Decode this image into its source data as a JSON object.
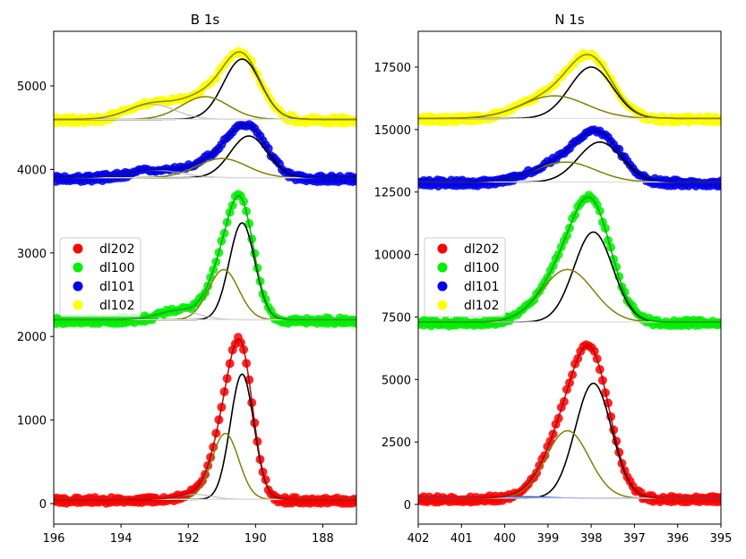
{
  "chart_data": [
    {
      "type": "scatter",
      "title": "B 1s",
      "xlabel": "",
      "ylabel": "",
      "xlim": [
        196,
        187
      ],
      "ylim": [
        -246,
        5653
      ],
      "xticks": [
        196,
        194,
        192,
        190,
        188
      ],
      "yticks": [
        0,
        1000,
        2000,
        3000,
        4000,
        5000
      ],
      "legend_position": "center-left",
      "series": [
        {
          "name": "dl202",
          "color": "#ff0000",
          "fit_color": "#aa0000",
          "baseline": 50,
          "components": [
            {
              "center": 190.4,
              "amp": 1500,
              "sigma": 0.35,
              "color": "#000000"
            },
            {
              "center": 190.9,
              "amp": 790,
              "sigma": 0.4,
              "color": "#808000"
            },
            {
              "center": 191.8,
              "amp": 60,
              "sigma": 0.5,
              "color": "#b0b0b0"
            }
          ]
        },
        {
          "name": "dl100",
          "color": "#00ee00",
          "fit_color": "#00aa00",
          "baseline": 2200,
          "components": [
            {
              "center": 190.4,
              "amp": 1160,
              "sigma": 0.38,
              "color": "#000000"
            },
            {
              "center": 190.95,
              "amp": 600,
              "sigma": 0.45,
              "color": "#808000"
            },
            {
              "center": 192.3,
              "amp": 110,
              "sigma": 0.6,
              "color": "#b0b0b0"
            }
          ]
        },
        {
          "name": "dl101",
          "color": "#0000ee",
          "fit_color": "#000080",
          "baseline": 3900,
          "components": [
            {
              "center": 190.2,
              "amp": 500,
              "sigma": 0.55,
              "color": "#000000"
            },
            {
              "center": 191.0,
              "amp": 230,
              "sigma": 0.75,
              "color": "#808000"
            },
            {
              "center": 193.0,
              "amp": 90,
              "sigma": 0.8,
              "color": "#b0b0b0"
            }
          ]
        },
        {
          "name": "dl102",
          "color": "#ffff00",
          "fit_color": "#808000",
          "baseline": 4600,
          "components": [
            {
              "center": 190.4,
              "amp": 720,
              "sigma": 0.55,
              "color": "#000000"
            },
            {
              "center": 191.5,
              "amp": 270,
              "sigma": 0.7,
              "color": "#808000"
            },
            {
              "center": 193.1,
              "amp": 180,
              "sigma": 0.7,
              "color": "#b0b0b0"
            }
          ]
        }
      ]
    },
    {
      "type": "scatter",
      "title": "N 1s",
      "xlabel": "",
      "ylabel": "",
      "xlim": [
        402,
        395
      ],
      "ylim": [
        -787,
        18932
      ],
      "xticks": [
        402,
        401,
        400,
        399,
        398,
        397,
        396,
        395
      ],
      "yticks": [
        0,
        2500,
        5000,
        7500,
        10000,
        12500,
        15000,
        17500
      ],
      "legend_position": "center-left",
      "series": [
        {
          "name": "dl202",
          "color": "#ff0000",
          "fit_color": "#aa0000",
          "baseline": 250,
          "components": [
            {
              "center": 397.95,
              "amp": 4600,
              "sigma": 0.42,
              "color": "#000000"
            },
            {
              "center": 398.55,
              "amp": 2700,
              "sigma": 0.5,
              "color": "#808000"
            },
            {
              "center": 399.5,
              "amp": 60,
              "sigma": 0.5,
              "color": "#4169e1"
            }
          ]
        },
        {
          "name": "dl100",
          "color": "#00ee00",
          "fit_color": "#00aa00",
          "baseline": 7300,
          "components": [
            {
              "center": 397.95,
              "amp": 3600,
              "sigma": 0.45,
              "color": "#000000"
            },
            {
              "center": 398.55,
              "amp": 2100,
              "sigma": 0.6,
              "color": "#808000"
            }
          ]
        },
        {
          "name": "dl101",
          "color": "#0000ee",
          "fit_color": "#000080",
          "baseline": 12900,
          "components": [
            {
              "center": 397.8,
              "amp": 1600,
              "sigma": 0.5,
              "color": "#000000"
            },
            {
              "center": 398.6,
              "amp": 800,
              "sigma": 0.7,
              "color": "#808000"
            }
          ]
        },
        {
          "name": "dl102",
          "color": "#ffff00",
          "fit_color": "#808000",
          "baseline": 15450,
          "components": [
            {
              "center": 398.0,
              "amp": 2050,
              "sigma": 0.5,
              "color": "#000000"
            },
            {
              "center": 398.85,
              "amp": 900,
              "sigma": 0.75,
              "color": "#808000"
            }
          ]
        }
      ]
    }
  ]
}
